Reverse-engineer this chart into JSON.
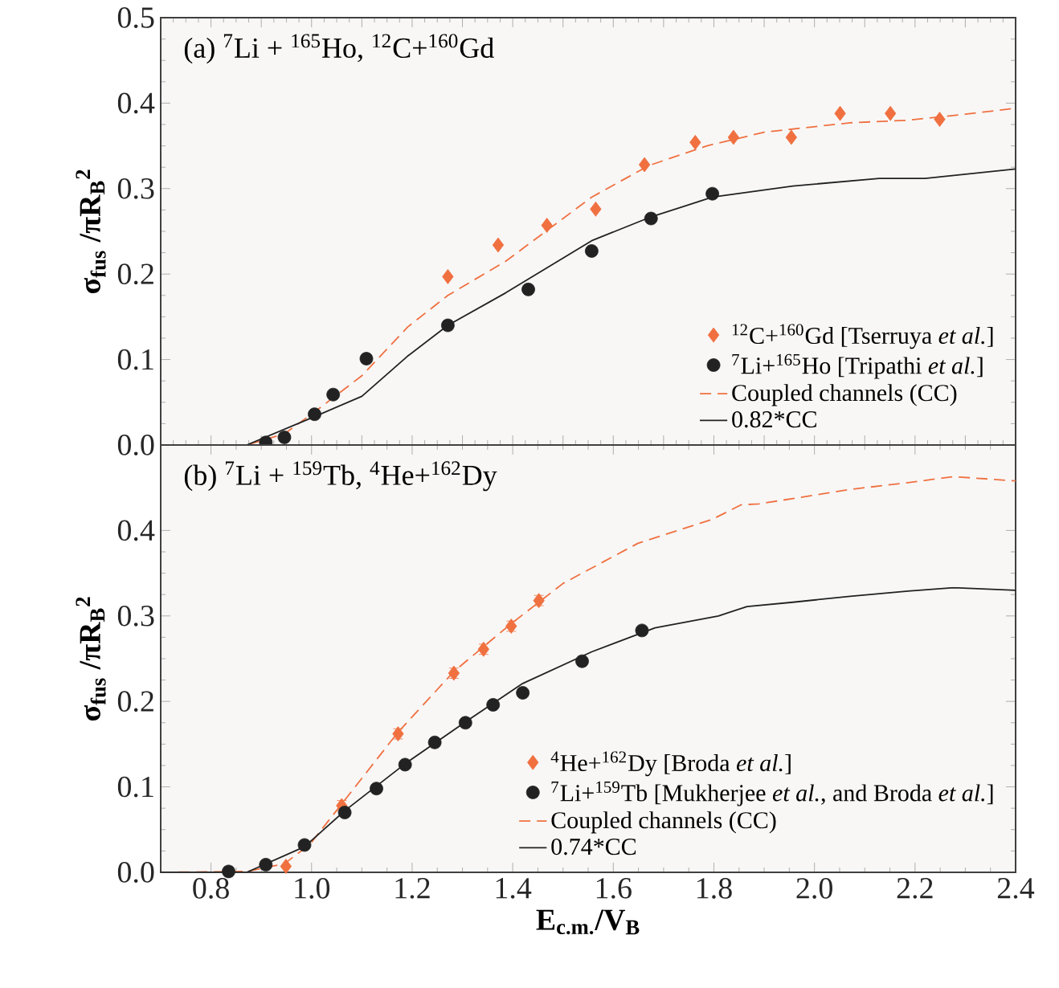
{
  "chart_data": [
    {
      "type": "scatter",
      "ylabel": "σ$_{fus}$ /πR$_{B}$$^{2}$",
      "annotations": [
        "(a) $^{7}$Li  + $^{165}$Ho, $^{12}$C+$^{160}$Gd"
      ],
      "xlim": [
        0.7,
        2.4
      ],
      "ylim": [
        0,
        0.5
      ],
      "yticks": [
        {
          "value": 0,
          "label": "0.0"
        },
        0.1,
        0.2,
        0.3,
        0.4,
        0.5
      ],
      "tick_labels": "y",
      "legend": "bottom right",
      "series": [
        {
          "name": "$^{12}$C+$^{160}$Gd [Tserruya *et al.*]",
          "marker": "diamond",
          "color": "#f07040",
          "x": [
            1.271,
            1.371,
            1.468,
            1.565,
            1.662,
            1.763,
            1.839,
            1.954,
            2.051,
            2.151,
            2.249
          ],
          "values": [
            0.197,
            0.234,
            0.257,
            0.276,
            0.328,
            0.354,
            0.36,
            0.36,
            0.388,
            0.388,
            0.381
          ]
        },
        {
          "name": "$^{7}$Li+$^{165}$Ho [Tripathi *et al.*]",
          "marker": "circle",
          "color": "#222222",
          "x": [
            0.909,
            0.946,
            1.006,
            1.043,
            1.109,
            1.271,
            1.431,
            1.557,
            1.675,
            1.797
          ],
          "values": [
            0.003,
            0.009,
            0.036,
            0.059,
            0.101,
            0.14,
            0.182,
            0.227,
            0.265,
            0.294
          ]
        },
        {
          "name": "Coupled channels (CC)",
          "type": "line",
          "line_style": "dashed",
          "color": "#f07040",
          "x": [
            0.7,
            0.871,
            0.946,
            1.009,
            1.1,
            1.191,
            1.271,
            1.386,
            1.557,
            1.671,
            1.786,
            1.9,
            2.071,
            2.186,
            2.3,
            2.4
          ],
          "values": [
            0,
            0,
            0.013,
            0.04,
            0.081,
            0.138,
            0.175,
            0.215,
            0.29,
            0.327,
            0.35,
            0.366,
            0.377,
            0.38,
            0.387,
            0.394
          ]
        },
        {
          "name": "0.82*CC",
          "type": "line",
          "line_style": "solid",
          "color": "#222222",
          "x": [
            0.7,
            0.871,
            1.009,
            1.1,
            1.191,
            1.271,
            1.386,
            1.557,
            1.671,
            1.797,
            1.957,
            2.129,
            2.22,
            2.4
          ],
          "values": [
            0,
            0,
            0.034,
            0.057,
            0.104,
            0.14,
            0.178,
            0.239,
            0.266,
            0.29,
            0.303,
            0.312,
            0.312,
            0.323
          ]
        }
      ]
    },
    {
      "type": "scatter",
      "xlabel": "E$_{c.m.}$/V$_{B}$",
      "ylabel": "σ$_{fus}$ /πR$_{B}$$^{2}$",
      "annotations": [
        "(b) $^{7}$Li  + $^{159}$Tb, $^{4}$He+$^{162}$Dy"
      ],
      "xlim": [
        0.7,
        2.4
      ],
      "xticks": [
        0.8,
        {
          "value": 1,
          "label": "1.0"
        },
        1.2,
        1.4,
        1.6,
        1.8,
        {
          "value": 2,
          "label": "2.0"
        },
        2.2,
        2.4
      ],
      "ylim": [
        0,
        0.5
      ],
      "yticks": [
        {
          "value": 0,
          "label": "0.0"
        },
        0.1,
        0.2,
        0.3,
        0.4
      ],
      "legend": "bottom right",
      "series": [
        {
          "name": "$^{4}$He+$^{162}$Dy [Broda *et al.*]",
          "marker": "diamond",
          "color": "#f07040",
          "x": [
            0.949,
            1.06,
            1.172,
            1.283,
            1.342,
            1.397,
            1.452
          ],
          "values": [
            0.007,
            0.078,
            0.162,
            0.233,
            0.261,
            0.288,
            0.318
          ],
          "errors": [
            null,
            0.006,
            0.006,
            0.006,
            0.006,
            0.006,
            0.006
          ]
        },
        {
          "name": "$^{7}$Li+$^{159}$Tb [Mukherjee *et al.*, and Broda *et al.*]",
          "marker": "circle",
          "color": "#222222",
          "x": [
            0.835,
            0.909,
            0.986,
            1.066,
            1.129,
            1.186,
            1.245,
            1.306,
            1.361,
            1.42,
            1.538,
            1.657
          ],
          "values": [
            0.001,
            0.009,
            0.032,
            0.07,
            0.098,
            0.126,
            0.152,
            0.175,
            0.196,
            0.21,
            0.247,
            0.283
          ]
        },
        {
          "name": "Coupled channels (CC)",
          "type": "line",
          "line_style": "dashed",
          "color": "#f07040",
          "x": [
            0.7,
            0.871,
            0.946,
            0.997,
            1.06,
            1.172,
            1.283,
            1.397,
            1.5,
            1.649,
            1.797,
            1.854,
            1.889,
            2.071,
            2.186,
            2.277,
            2.4
          ],
          "values": [
            0,
            0.001,
            0.01,
            0.033,
            0.08,
            0.164,
            0.235,
            0.291,
            0.338,
            0.385,
            0.413,
            0.43,
            0.431,
            0.448,
            0.456,
            0.463,
            0.458
          ]
        },
        {
          "name": "0.74*CC",
          "type": "line",
          "line_style": "solid",
          "color": "#222222",
          "x": [
            0.7,
            0.871,
            0.986,
            1.066,
            1.186,
            1.306,
            1.42,
            1.557,
            1.683,
            1.809,
            1.866,
            1.957,
            2.071,
            2.186,
            2.277,
            2.4
          ],
          "values": [
            0,
            0,
            0.03,
            0.072,
            0.127,
            0.176,
            0.221,
            0.258,
            0.286,
            0.3,
            0.311,
            0.316,
            0.323,
            0.329,
            0.333,
            0.33
          ]
        }
      ]
    }
  ]
}
